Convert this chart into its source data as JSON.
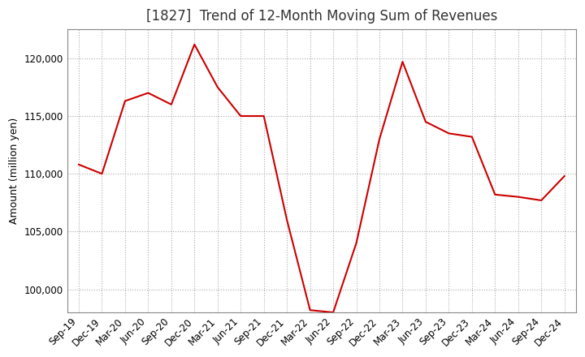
{
  "title": "[1827]  Trend of 12-Month Moving Sum of Revenues",
  "ylabel": "Amount (million yen)",
  "background_color": "#ffffff",
  "grid_color": "#aaaaaa",
  "line_color": "#cc0000",
  "x_labels": [
    "Sep-19",
    "Dec-19",
    "Mar-20",
    "Jun-20",
    "Sep-20",
    "Dec-20",
    "Mar-21",
    "Jun-21",
    "Sep-21",
    "Dec-21",
    "Mar-22",
    "Jun-22",
    "Sep-22",
    "Dec-22",
    "Mar-23",
    "Jun-23",
    "Sep-23",
    "Dec-23",
    "Mar-24",
    "Jun-24",
    "Sep-24",
    "Dec-24"
  ],
  "values": [
    110800,
    110000,
    116300,
    117000,
    116000,
    121200,
    117500,
    115000,
    115000,
    106000,
    98200,
    98000,
    104000,
    113000,
    119700,
    114500,
    113500,
    113200,
    108200,
    108000,
    107700,
    109800
  ],
  "ylim": [
    98000,
    122500
  ],
  "yticks": [
    100000,
    105000,
    110000,
    115000,
    120000
  ],
  "title_fontsize": 12,
  "axis_fontsize": 9,
  "tick_fontsize": 8.5
}
